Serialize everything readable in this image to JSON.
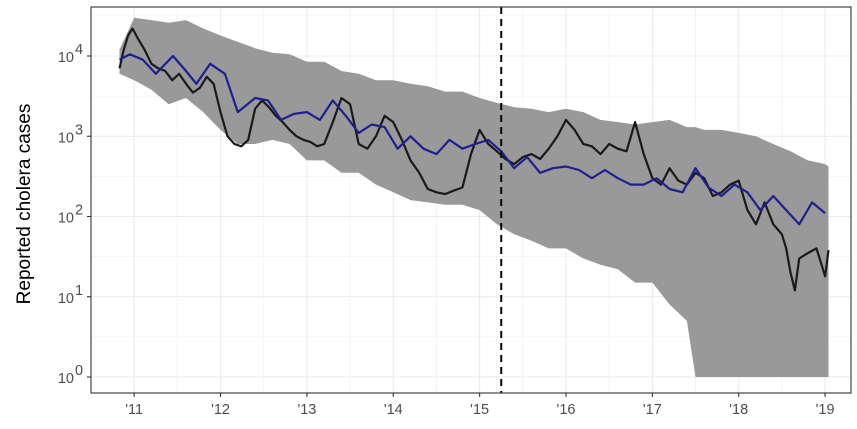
{
  "chart_data": {
    "type": "line",
    "title": "",
    "xlabel": "",
    "ylabel": "Reported cholera cases",
    "y_scale": "log10",
    "ylim": [
      1,
      40000
    ],
    "xlim": [
      2010.5,
      2019.3
    ],
    "x_ticks": [
      {
        "value": 2011,
        "label": "'11"
      },
      {
        "value": 2012,
        "label": "'12"
      },
      {
        "value": 2013,
        "label": "'13"
      },
      {
        "value": 2014,
        "label": "'14"
      },
      {
        "value": 2015,
        "label": "'15"
      },
      {
        "value": 2016,
        "label": "'16"
      },
      {
        "value": 2017,
        "label": "'17"
      },
      {
        "value": 2018,
        "label": "'18"
      },
      {
        "value": 2019,
        "label": "'19"
      }
    ],
    "y_ticks": [
      {
        "value": 1,
        "base": "10",
        "exp": "0"
      },
      {
        "value": 10,
        "base": "10",
        "exp": "1"
      },
      {
        "value": 100,
        "base": "10",
        "exp": "2"
      },
      {
        "value": 1000,
        "base": "10",
        "exp": "3"
      },
      {
        "value": 10000,
        "base": "10",
        "exp": "4"
      }
    ],
    "grid": true,
    "vline": {
      "x": 2015.25,
      "style": "dashed"
    },
    "colors": {
      "reported": "#1a1a1a",
      "model": "#1f1f8f",
      "band": "#999999"
    },
    "band": {
      "x": [
        2010.83,
        2011.0,
        2011.2,
        2011.4,
        2011.6,
        2011.8,
        2012.0,
        2012.2,
        2012.4,
        2012.6,
        2012.8,
        2013.0,
        2013.2,
        2013.4,
        2013.6,
        2013.8,
        2014.0,
        2014.2,
        2014.4,
        2014.6,
        2014.8,
        2015.0,
        2015.2,
        2015.4,
        2015.6,
        2015.8,
        2016.0,
        2016.2,
        2016.4,
        2016.6,
        2016.8,
        2017.0,
        2017.2,
        2017.4,
        2017.5,
        2017.6,
        2017.8,
        2018.0,
        2018.2,
        2018.4,
        2018.6,
        2018.8,
        2019.0,
        2019.04
      ],
      "upper": [
        12000,
        30000,
        28000,
        26000,
        28000,
        22000,
        18000,
        15000,
        12500,
        11000,
        10500,
        8500,
        8500,
        6500,
        6000,
        5000,
        5000,
        4500,
        4200,
        3600,
        3600,
        3000,
        2600,
        2300,
        2200,
        2000,
        2200,
        2000,
        1600,
        1500,
        1400,
        1500,
        1600,
        1300,
        1300,
        1200,
        1200,
        1100,
        1000,
        800,
        650,
        500,
        450,
        420
      ],
      "lower": [
        6000,
        5000,
        3800,
        2500,
        3000,
        2000,
        1200,
        800,
        800,
        900,
        800,
        500,
        500,
        350,
        350,
        250,
        200,
        160,
        150,
        140,
        140,
        120,
        80,
        60,
        50,
        40,
        40,
        30,
        25,
        22,
        15,
        15,
        8,
        5,
        1,
        1,
        1,
        1,
        1,
        1,
        1,
        1,
        1,
        1
      ]
    },
    "series": [
      {
        "name": "",
        "x": [
          2010.83,
          2010.88,
          2010.93,
          2010.98,
          2011.05,
          2011.12,
          2011.2,
          2011.28,
          2011.36,
          2011.44,
          2011.52,
          2011.6,
          2011.68,
          2011.76,
          2011.84,
          2011.92,
          2012.0,
          2012.08,
          2012.16,
          2012.24,
          2012.32,
          2012.4,
          2012.48,
          2012.56,
          2012.64,
          2012.72,
          2012.8,
          2012.88,
          2012.96,
          2013.04,
          2013.12,
          2013.2,
          2013.3,
          2013.4,
          2013.5,
          2013.6,
          2013.7,
          2013.8,
          2013.9,
          2014.0,
          2014.1,
          2014.2,
          2014.3,
          2014.4,
          2014.5,
          2014.6,
          2014.7,
          2014.8,
          2014.9,
          2015.0,
          2015.1,
          2015.2,
          2015.3,
          2015.4,
          2015.5,
          2015.6,
          2015.7,
          2015.8,
          2015.9,
          2016.0,
          2016.1,
          2016.2,
          2016.3,
          2016.4,
          2016.5,
          2016.6,
          2016.7,
          2016.8,
          2016.9,
          2017.0,
          2017.1,
          2017.2,
          2017.3,
          2017.4,
          2017.5,
          2017.6,
          2017.7,
          2017.8,
          2017.9,
          2018.0,
          2018.1,
          2018.2,
          2018.3,
          2018.4,
          2018.5,
          2018.55,
          2018.6,
          2018.65,
          2018.7,
          2018.8,
          2018.9,
          2019.0,
          2019.04
        ],
        "values": [
          7000,
          12000,
          18000,
          22000,
          16000,
          12000,
          8000,
          7000,
          6500,
          5000,
          6000,
          4500,
          3500,
          4000,
          5500,
          4500,
          2000,
          1000,
          800,
          750,
          900,
          2200,
          2800,
          2300,
          1800,
          1500,
          1200,
          1000,
          900,
          850,
          750,
          800,
          1500,
          3000,
          2500,
          800,
          700,
          1000,
          1800,
          1500,
          900,
          500,
          350,
          220,
          200,
          190,
          210,
          230,
          600,
          1200,
          800,
          650,
          520,
          450,
          550,
          600,
          520,
          700,
          1000,
          1600,
          1200,
          800,
          750,
          600,
          800,
          700,
          650,
          1500,
          600,
          300,
          250,
          400,
          280,
          250,
          350,
          300,
          180,
          200,
          250,
          280,
          120,
          80,
          150,
          80,
          60,
          40,
          20,
          12,
          30,
          35,
          40,
          18,
          38
        ]
      },
      {
        "name": "",
        "x": [
          2010.83,
          2010.95,
          2011.1,
          2011.25,
          2011.45,
          2011.6,
          2011.72,
          2011.88,
          2012.05,
          2012.2,
          2012.4,
          2012.55,
          2012.7,
          2012.85,
          2013.0,
          2013.15,
          2013.3,
          2013.45,
          2013.6,
          2013.75,
          2013.9,
          2014.05,
          2014.2,
          2014.35,
          2014.5,
          2014.65,
          2014.8,
          2014.95,
          2015.1,
          2015.25,
          2015.4,
          2015.55,
          2015.7,
          2015.85,
          2016.0,
          2016.15,
          2016.3,
          2016.45,
          2016.6,
          2016.75,
          2016.9,
          2017.05,
          2017.2,
          2017.35,
          2017.5,
          2017.65,
          2017.8,
          2017.95,
          2018.1,
          2018.25,
          2018.4,
          2018.55,
          2018.7,
          2018.85,
          2019.0
        ],
        "values": [
          9000,
          10500,
          9000,
          6000,
          10000,
          6500,
          4500,
          8000,
          6000,
          2000,
          3000,
          2800,
          1600,
          1900,
          2000,
          1600,
          2800,
          1800,
          1100,
          1400,
          1300,
          700,
          1000,
          700,
          600,
          900,
          700,
          800,
          900,
          650,
          400,
          550,
          350,
          400,
          420,
          380,
          300,
          380,
          300,
          250,
          250,
          300,
          220,
          200,
          400,
          230,
          180,
          250,
          200,
          120,
          180,
          120,
          80,
          150,
          110
        ]
      }
    ]
  }
}
